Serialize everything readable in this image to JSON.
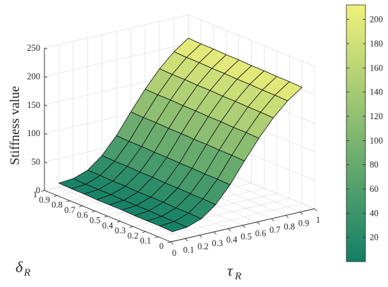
{
  "chart_data": {
    "type": "surface",
    "title": "",
    "zlabel": "Stiffness value",
    "xlabel": "τ",
    "xlabel_sub": "R",
    "ylabel": "δ",
    "ylabel_sub": "R",
    "x_ticks": [
      "0",
      "0.1",
      "0.2",
      "0.3",
      "0.4",
      "0.5",
      "0.6",
      "0.7",
      "0.8",
      "0.9",
      "1"
    ],
    "y_ticks": [
      "0",
      "0.1",
      "0.2",
      "0.3",
      "0.4",
      "0.5",
      "0.6",
      "0.7",
      "0.8",
      "0.9",
      "1"
    ],
    "z_ticks": [
      "0",
      "50",
      "100",
      "150",
      "200",
      "250"
    ],
    "xlim": [
      0,
      1
    ],
    "ylim": [
      0,
      1
    ],
    "zlim": [
      0,
      250
    ],
    "grid": true,
    "colormap": "summer",
    "colorbar": {
      "range": [
        0,
        212
      ],
      "ticks": [
        "20",
        "40",
        "60",
        "80",
        "100",
        "120",
        "140",
        "160",
        "180",
        "200"
      ],
      "color_low": "#127f66",
      "color_high": "#f1f17b"
    },
    "x": [
      0.1,
      0.2,
      0.3,
      0.4,
      0.5,
      0.6,
      0.7,
      0.8,
      0.9,
      1.0
    ],
    "y": [
      0.1,
      0.2,
      0.3,
      0.4,
      0.5,
      0.6,
      0.7,
      0.8,
      0.9,
      1.0
    ],
    "z_rows_by_y": [
      [
        3,
        5,
        14,
        33,
        62,
        98,
        132,
        162,
        186,
        204
      ],
      [
        4,
        6,
        15,
        34,
        63,
        99,
        133,
        163,
        187,
        205
      ],
      [
        4,
        6,
        15,
        34,
        63,
        99,
        133,
        163,
        187,
        205
      ],
      [
        4,
        7,
        16,
        35,
        64,
        100,
        134,
        164,
        188,
        206
      ],
      [
        5,
        7,
        16,
        35,
        64,
        100,
        134,
        164,
        188,
        206
      ],
      [
        5,
        7,
        16,
        36,
        65,
        101,
        135,
        165,
        189,
        207
      ],
      [
        5,
        8,
        17,
        36,
        65,
        101,
        135,
        165,
        189,
        207
      ],
      [
        6,
        8,
        17,
        37,
        66,
        102,
        136,
        166,
        190,
        208
      ],
      [
        6,
        8,
        18,
        37,
        66,
        102,
        136,
        166,
        190,
        208
      ],
      [
        7,
        9,
        18,
        38,
        67,
        103,
        137,
        167,
        191,
        209
      ]
    ]
  }
}
